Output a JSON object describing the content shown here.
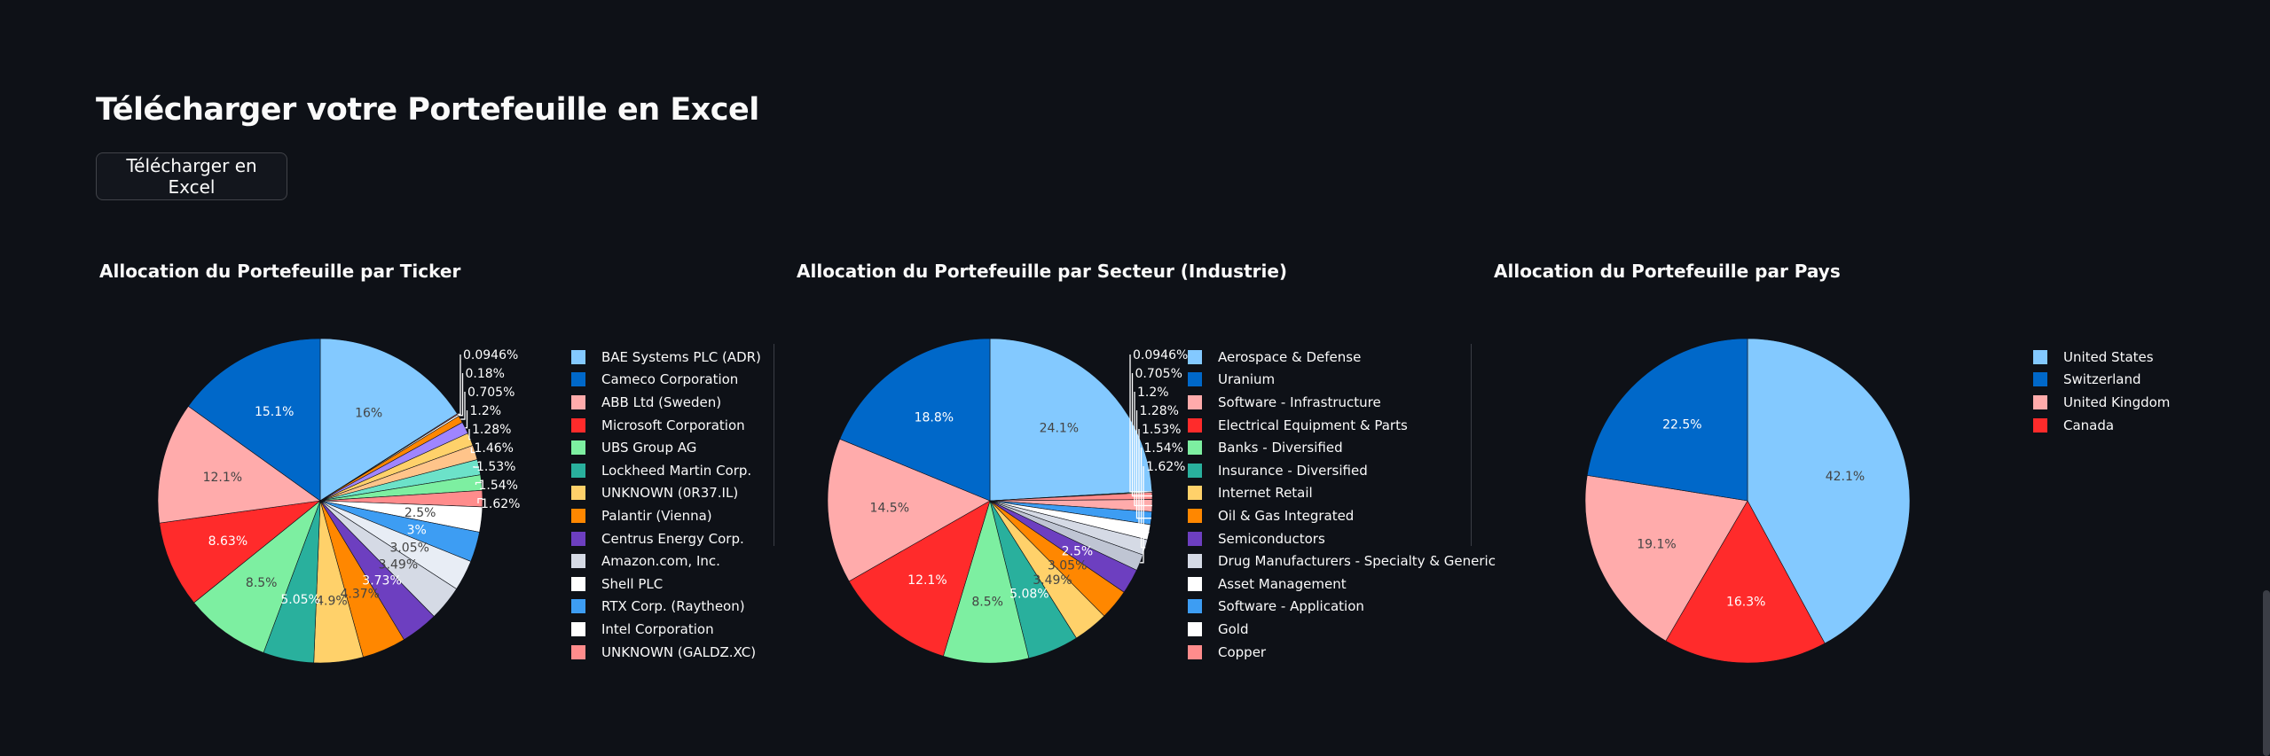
{
  "page": {
    "title": "Télécharger votre Portefeuille en Excel",
    "download_button": "Télécharger en Excel"
  },
  "chart_data": [
    {
      "type": "pie",
      "title": "Allocation du Portefeuille par Ticker",
      "slices": [
        {
          "label": "BAE Systems PLC (ADR)",
          "value": 16,
          "text": "16%",
          "color": "#83c9ff"
        },
        {
          "label": "UNKNOWN (GALDZ.XC)",
          "value": 0.0946,
          "text": "0.0946%",
          "color": "#ff8c8c"
        },
        {
          "label": "Intel Corporation",
          "value": 0.18,
          "text": "0.18%",
          "color": "#ffffff"
        },
        {
          "label": "Palantir (Vienna)",
          "value": 0.705,
          "text": "0.705%",
          "color": "#ff8700"
        },
        {
          "label": "Cameco Corporation",
          "value": 1.2,
          "text": "1.2%",
          "color": "#9f85ff"
        },
        {
          "label": "ABB Ltd (Sweden)",
          "value": 1.28,
          "text": "1.28%",
          "color": "#ffd16a"
        },
        {
          "label": "Microsoft Corporation",
          "value": 1.46,
          "text": "1.46%",
          "color": "#ffc48a"
        },
        {
          "label": "UBS Group AG",
          "value": 1.53,
          "text": "1.53%",
          "color": "#6ce2c9"
        },
        {
          "label": "Lockheed Martin Corp.",
          "value": 1.54,
          "text": "1.54%",
          "color": "#7defa1"
        },
        {
          "label": "UNKNOWN (0R37.IL)",
          "value": 1.62,
          "text": "1.62%",
          "color": "#ff8c8c"
        },
        {
          "label": "Centrus Energy Corp.",
          "value": 2.5,
          "text": "2.5%",
          "color": "#ffffff"
        },
        {
          "label": "Amazon.com, Inc.",
          "value": 3,
          "text": "3%",
          "color": "#3d9df3"
        },
        {
          "label": "Shell PLC",
          "value": 3.05,
          "text": "3.05%",
          "color": "#e8edf5"
        },
        {
          "label": "RTX Corp. (Raytheon)",
          "value": 3.49,
          "text": "3.49%",
          "color": "#d5dae5"
        },
        {
          "label": "Intel Corporation",
          "value": 3.73,
          "text": "3.73%",
          "color": "#6d3fc0"
        },
        {
          "label": "UNKNOWN (GALDZ.XC)",
          "value": 4.37,
          "text": "4.37%",
          "color": "#ff8700"
        },
        {
          "label": "Palantir (Vienna)",
          "value": 4.9,
          "text": "4.9%",
          "color": "#ffd16a"
        },
        {
          "label": "Centrus Energy Corp.",
          "value": 5.05,
          "text": "5.05%",
          "color": "#29b09d"
        },
        {
          "label": "Amazon.com, Inc.",
          "value": 8.5,
          "text": "8.5%",
          "color": "#7defa1"
        },
        {
          "label": "Shell PLC",
          "value": 8.63,
          "text": "8.63%",
          "color": "#ff2b2b"
        },
        {
          "label": "RTX Corp. (Raytheon)",
          "value": 12.1,
          "text": "12.1%",
          "color": "#ffabab"
        },
        {
          "label": "Cameco Corporation",
          "value": 15.1,
          "text": "15.1%",
          "color": "#0068c9"
        }
      ],
      "legend": [
        {
          "label": "BAE Systems PLC (ADR)",
          "color": "#83c9ff"
        },
        {
          "label": "Cameco Corporation",
          "color": "#0068c9"
        },
        {
          "label": "ABB Ltd (Sweden)",
          "color": "#ffabab"
        },
        {
          "label": "Microsoft Corporation",
          "color": "#ff2b2b"
        },
        {
          "label": "UBS Group AG",
          "color": "#7defa1"
        },
        {
          "label": "Lockheed Martin Corp.",
          "color": "#29b09d"
        },
        {
          "label": "UNKNOWN (0R37.IL)",
          "color": "#ffd16a"
        },
        {
          "label": "Palantir (Vienna)",
          "color": "#ff8700"
        },
        {
          "label": "Centrus Energy Corp.",
          "color": "#6d3fc0"
        },
        {
          "label": "Amazon.com, Inc.",
          "color": "#d5dae5"
        },
        {
          "label": "Shell PLC",
          "color": "#ffffff"
        },
        {
          "label": "RTX Corp. (Raytheon)",
          "color": "#3d9df3"
        },
        {
          "label": "Intel Corporation",
          "color": "#ffffff"
        },
        {
          "label": "UNKNOWN (GALDZ.XC)",
          "color": "#ff8c8c"
        }
      ]
    },
    {
      "type": "pie",
      "title": "Allocation du Portefeuille par Secteur (Industrie)",
      "slices": [
        {
          "label": "Aerospace & Defense",
          "value": 24.1,
          "text": "24.1%",
          "color": "#83c9ff"
        },
        {
          "label": "Gold",
          "value": 0.0946,
          "text": "0.0946%",
          "color": "#7defa1"
        },
        {
          "label": "Software - Infrastructure",
          "value": 0.705,
          "text": "0.705%",
          "color": "#ff8c8c"
        },
        {
          "label": "Software - Application",
          "value": 1.2,
          "text": "1.2%",
          "color": "#ffabab"
        },
        {
          "label": "Asset Management",
          "value": 1.28,
          "text": "1.28%",
          "color": "#3d9df3"
        },
        {
          "label": "Copper",
          "value": 1.53,
          "text": "1.53%",
          "color": "#ffffff"
        },
        {
          "label": "Internet Retail",
          "value": 1.54,
          "text": "1.54%",
          "color": "#d5dae5"
        },
        {
          "label": "Insurance - Diversified",
          "value": 1.62,
          "text": "1.62%",
          "color": "#bfc5d3"
        },
        {
          "label": "Semiconductors",
          "value": 2.5,
          "text": "2.5%",
          "color": "#6d3fc0"
        },
        {
          "label": "Oil & Gas Integrated",
          "value": 3.05,
          "text": "3.05%",
          "color": "#ff8700"
        },
        {
          "label": "Internet Retail",
          "value": 3.49,
          "text": "3.49%",
          "color": "#ffd16a"
        },
        {
          "label": "Insurance - Diversified",
          "value": 5.08,
          "text": "5.08%",
          "color": "#29b09d"
        },
        {
          "label": "Banks - Diversified",
          "value": 8.5,
          "text": "8.5%",
          "color": "#7defa1"
        },
        {
          "label": "Electrical Equipment & Parts",
          "value": 12.1,
          "text": "12.1%",
          "color": "#ff2b2b"
        },
        {
          "label": "Software - Infrastructure",
          "value": 14.5,
          "text": "14.5%",
          "color": "#ffabab"
        },
        {
          "label": "Uranium",
          "value": 18.8,
          "text": "18.8%",
          "color": "#0068c9"
        }
      ],
      "legend": [
        {
          "label": "Aerospace & Defense",
          "color": "#83c9ff"
        },
        {
          "label": "Uranium",
          "color": "#0068c9"
        },
        {
          "label": "Software - Infrastructure",
          "color": "#ffabab"
        },
        {
          "label": "Electrical Equipment & Parts",
          "color": "#ff2b2b"
        },
        {
          "label": "Banks - Diversified",
          "color": "#7defa1"
        },
        {
          "label": "Insurance - Diversified",
          "color": "#29b09d"
        },
        {
          "label": "Internet Retail",
          "color": "#ffd16a"
        },
        {
          "label": "Oil & Gas Integrated",
          "color": "#ff8700"
        },
        {
          "label": "Semiconductors",
          "color": "#6d3fc0"
        },
        {
          "label": "Drug Manufacturers - Specialty & Generic",
          "color": "#d5dae5"
        },
        {
          "label": "Asset Management",
          "color": "#ffffff"
        },
        {
          "label": "Software - Application",
          "color": "#3d9df3"
        },
        {
          "label": "Gold",
          "color": "#ffffff"
        },
        {
          "label": "Copper",
          "color": "#ff8c8c"
        }
      ]
    },
    {
      "type": "pie",
      "title": "Allocation du Portefeuille par Pays",
      "slices": [
        {
          "label": "United States",
          "value": 42.1,
          "text": "42.1%",
          "color": "#83c9ff"
        },
        {
          "label": "Canada",
          "value": 16.3,
          "text": "16.3%",
          "color": "#ff2b2b"
        },
        {
          "label": "United Kingdom",
          "value": 19.1,
          "text": "19.1%",
          "color": "#ffabab"
        },
        {
          "label": "Switzerland",
          "value": 22.5,
          "text": "22.5%",
          "color": "#0068c9"
        }
      ],
      "legend": [
        {
          "label": "United States",
          "color": "#83c9ff"
        },
        {
          "label": "Switzerland",
          "color": "#0068c9"
        },
        {
          "label": "United Kingdom",
          "color": "#ffabab"
        },
        {
          "label": "Canada",
          "color": "#ff2b2b"
        }
      ]
    }
  ]
}
